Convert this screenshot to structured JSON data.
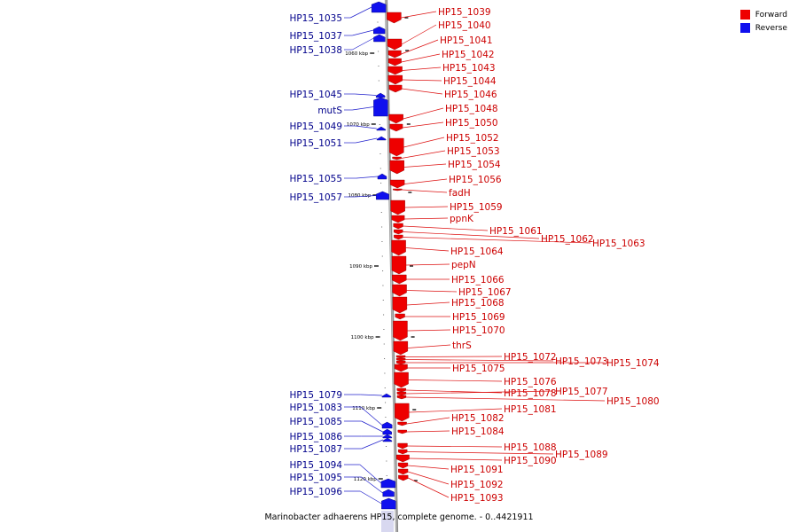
{
  "caption": "Marinobacter adhaerens HP15, complete genome. - 0..4421911",
  "legend": {
    "forward": {
      "label": "Forward",
      "color": "#ee0000"
    },
    "reverse": {
      "label": "Reverse",
      "color": "#1010ee"
    }
  },
  "axis": {
    "kbp_ticks": [
      {
        "kbp": 1060,
        "label": "1060 kbp"
      },
      {
        "kbp": 1070,
        "label": "1070 kbp"
      },
      {
        "kbp": 1080,
        "label": "1080 kbp"
      },
      {
        "kbp": 1090,
        "label": "1090 kbp"
      },
      {
        "kbp": 1100,
        "label": "1100 kbp"
      },
      {
        "kbp": 1110,
        "label": "1110 kbp"
      },
      {
        "kbp": 1120,
        "label": "1120 kbp"
      }
    ]
  },
  "reverse_genes": [
    "HP15_1035",
    "HP15_1037",
    "HP15_1038",
    "HP15_1045",
    "mutS",
    "HP15_1049",
    "HP15_1051",
    "HP15_1055",
    "HP15_1057",
    "HP15_1079",
    "HP15_1083",
    "HP15_1085",
    "HP15_1086",
    "HP15_1087",
    "HP15_1094",
    "HP15_1095",
    "HP15_1096"
  ],
  "forward_genes": [
    "HP15_1039",
    "HP15_1040",
    "HP15_1041",
    "HP15_1042",
    "HP15_1043",
    "HP15_1044",
    "HP15_1046",
    "HP15_1048",
    "HP15_1050",
    "HP15_1052",
    "HP15_1053",
    "HP15_1054",
    "HP15_1056",
    "fadH",
    "HP15_1059",
    "ppnK",
    "HP15_1061",
    "HP15_1062",
    "HP15_1063",
    "HP15_1064",
    "pepN",
    "HP15_1066",
    "HP15_1067",
    "HP15_1068",
    "HP15_1069",
    "HP15_1070",
    "thrS",
    "HP15_1072",
    "HP15_1073",
    "HP15_1074",
    "HP15_1075",
    "HP15_1076",
    "HP15_1078",
    "HP15_1077",
    "HP15_1080",
    "HP15_1081",
    "HP15_1082",
    "HP15_1084",
    "HP15_1088",
    "HP15_1089",
    "HP15_1090",
    "HP15_1091",
    "HP15_1092",
    "HP15_1093"
  ]
}
